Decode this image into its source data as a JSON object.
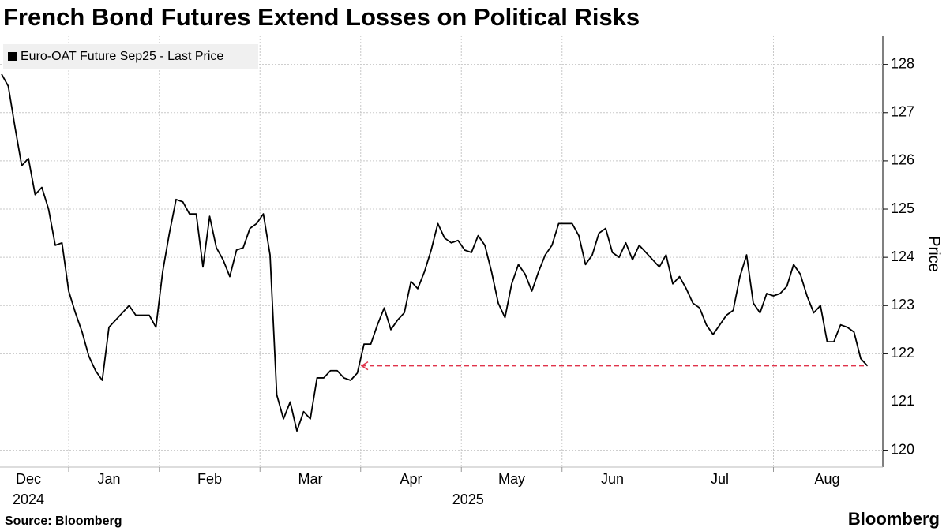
{
  "chart_data": {
    "type": "line",
    "title": "French Bond Futures Extend Losses on Political Risks",
    "y_label": "Price",
    "source": "Source: Bloomberg",
    "logo": "Bloomberg",
    "categories": [
      null,
      null,
      null,
      null,
      "Dec",
      null,
      null,
      null,
      null,
      null,
      null,
      null,
      null,
      null,
      null,
      null,
      "Jan",
      null,
      null,
      null,
      null,
      null,
      null,
      null,
      null,
      null,
      null,
      null,
      null,
      null,
      null,
      "Feb",
      null,
      null,
      null,
      null,
      null,
      null,
      null,
      null,
      null,
      null,
      null,
      null,
      null,
      null,
      "Mar",
      null,
      null,
      null,
      null,
      null,
      null,
      null,
      null,
      null,
      null,
      null,
      null,
      null,
      null,
      "Apr",
      null,
      null,
      null,
      null,
      null,
      null,
      null,
      null,
      null,
      null,
      null,
      null,
      null,
      null,
      "May",
      null,
      null,
      null,
      null,
      null,
      null,
      null,
      null,
      null,
      null,
      null,
      null,
      null,
      null,
      "Jun",
      null,
      null,
      null,
      null,
      null,
      null,
      null,
      null,
      null,
      null,
      null,
      null,
      null,
      null,
      null,
      "Jul",
      null,
      null,
      null,
      null,
      null,
      null,
      null,
      null,
      null,
      null,
      null,
      null,
      null,
      null,
      null,
      "Aug",
      null,
      null,
      null,
      null,
      null,
      null
    ],
    "xgroups": [
      {
        "label": "2024",
        "span": 1
      },
      {
        "label": "2025",
        "span": 8
      }
    ],
    "series": [
      {
        "name": "Euro-OAT Future Sep25 - Last Price",
        "color": "#000000",
        "values": [
          127.8,
          127.55,
          126.7,
          125.9,
          126.05,
          125.3,
          125.45,
          125.0,
          124.25,
          124.3,
          123.3,
          122.85,
          122.45,
          121.95,
          121.65,
          121.45,
          122.55,
          122.7,
          122.85,
          123.0,
          122.8,
          122.8,
          122.8,
          122.55,
          123.7,
          124.5,
          125.2,
          125.15,
          124.9,
          124.9,
          123.8,
          124.85,
          124.2,
          123.95,
          123.6,
          124.15,
          124.2,
          124.6,
          124.7,
          124.9,
          124.05,
          121.15,
          120.65,
          121.0,
          120.4,
          120.8,
          120.65,
          121.5,
          121.5,
          121.65,
          121.65,
          121.5,
          121.45,
          121.6,
          122.2,
          122.2,
          122.6,
          122.95,
          122.5,
          122.7,
          122.85,
          123.5,
          123.35,
          123.7,
          124.15,
          124.7,
          124.4,
          124.3,
          124.35,
          124.15,
          124.1,
          124.45,
          124.25,
          123.7,
          123.05,
          122.75,
          123.45,
          123.85,
          123.65,
          123.3,
          123.7,
          124.05,
          124.25,
          124.7,
          124.7,
          124.7,
          124.45,
          123.85,
          124.05,
          124.5,
          124.6,
          124.1,
          124.0,
          124.3,
          123.95,
          124.25,
          124.1,
          123.95,
          123.8,
          124.05,
          123.45,
          123.6,
          123.35,
          123.05,
          122.95,
          122.6,
          122.4,
          122.6,
          122.8,
          122.9,
          123.6,
          124.05,
          123.05,
          122.85,
          123.25,
          123.2,
          123.25,
          123.4,
          123.85,
          123.65,
          123.2,
          122.85,
          123.0,
          122.25,
          122.25,
          122.6,
          122.55,
          122.45,
          121.9,
          121.75
        ]
      }
    ],
    "annotation_color": "#e0344b",
    "ylim": [
      119.65,
      128.6
    ],
    "yticks": [
      120,
      121,
      122,
      123,
      124,
      125,
      126,
      127,
      128
    ],
    "grid": true,
    "legend": "top-left"
  }
}
